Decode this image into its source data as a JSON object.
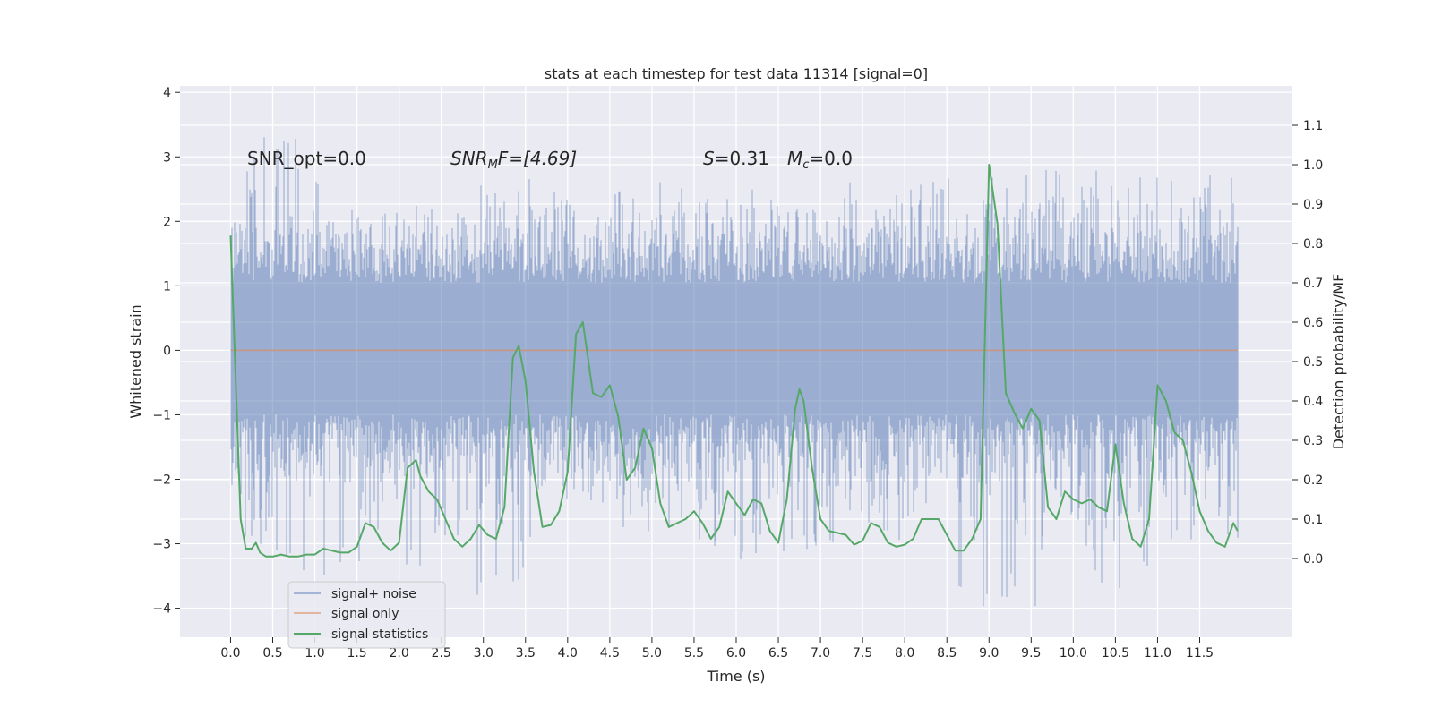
{
  "chart_data": {
    "type": "line",
    "title": "stats at each timestep for test data 11314 [signal=0]",
    "xlabel": "Time (s)",
    "ylabel": "Whitened strain",
    "ylabel_right": "Detection probability/MF",
    "xlim": [
      -0.6,
      12.6
    ],
    "ylim": [
      -4.45,
      4.1
    ],
    "ylim_right": [
      -0.2,
      1.2
    ],
    "x_ticks": [
      0.0,
      0.5,
      1.0,
      1.5,
      2.0,
      2.5,
      3.0,
      3.5,
      4.0,
      4.5,
      5.0,
      5.5,
      6.0,
      6.5,
      7.0,
      7.5,
      8.0,
      8.5,
      9.0,
      9.5,
      10.0,
      10.5,
      11.0,
      11.5
    ],
    "x_tick_labels": [
      "0.0",
      "0.5",
      "1.0",
      "1.5",
      "2.0",
      "2.5",
      "3.0",
      "3.5",
      "4.0",
      "4.5",
      "5.0",
      "5.5",
      "6.0",
      "6.5",
      "7.0",
      "7.5",
      "8.0",
      "8.5",
      "9.0",
      "9.5",
      "10.0",
      "10.5",
      "11.0",
      "11.5"
    ],
    "y_ticks": [
      -4,
      -3,
      -2,
      -1,
      0,
      1,
      2,
      3,
      4
    ],
    "y_tick_labels": [
      "−4",
      "−3",
      "−2",
      "−1",
      "0",
      "1",
      "2",
      "3",
      "4"
    ],
    "y_right_ticks": [
      0.0,
      0.1,
      0.2,
      0.3,
      0.4,
      0.5,
      0.6,
      0.7,
      0.8,
      0.9,
      1.0,
      1.1
    ],
    "y_right_tick_labels": [
      "0.0",
      "0.1",
      "0.2",
      "0.3",
      "0.4",
      "0.5",
      "0.6",
      "0.7",
      "0.8",
      "0.9",
      "1.0",
      "1.1"
    ],
    "grid": true,
    "legend_position": "lower-left",
    "annotations": {
      "snr_opt": "SNR_opt=0.0",
      "snr_mf_main": "SNR",
      "snr_mf_sub": "M",
      "snr_mf_rest": "F=[4.69]",
      "s_symbol": "S",
      "s_value": "=0.31",
      "mc_symbol": "M",
      "mc_sub": "c",
      "mc_value": "=0.0"
    },
    "series": [
      {
        "name": "signal+ noise",
        "axis": "left",
        "color": "#4c72b0",
        "duration": 11.95,
        "envelope_x": [
          0.0,
          0.7,
          1.3,
          2.0,
          3.0,
          4.0,
          5.0,
          6.0,
          7.0,
          8.0,
          9.0,
          10.0,
          11.0,
          11.95
        ],
        "envelope_hi": [
          2.9,
          3.74,
          2.5,
          2.4,
          2.6,
          2.7,
          2.7,
          2.3,
          2.6,
          2.7,
          3.7,
          2.8,
          2.8,
          2.7
        ],
        "envelope_lo": [
          -3.0,
          -3.4,
          -3.7,
          -3.3,
          -3.95,
          -3.1,
          -2.9,
          -3.3,
          -3.1,
          -3.0,
          -4.1,
          -3.9,
          -3.55,
          -3.25
        ]
      },
      {
        "name": "signal only",
        "axis": "left",
        "color": "#dd8452",
        "x": [
          0.0,
          11.95
        ],
        "y": [
          0.0,
          0.0
        ]
      },
      {
        "name": "signal statistics",
        "axis": "right",
        "color": "#55a868",
        "x": [
          0.0,
          0.12,
          0.18,
          0.25,
          0.3,
          0.35,
          0.42,
          0.5,
          0.6,
          0.7,
          0.8,
          0.9,
          1.0,
          1.1,
          1.2,
          1.3,
          1.4,
          1.5,
          1.6,
          1.7,
          1.75,
          1.8,
          1.9,
          2.0,
          2.1,
          2.2,
          2.25,
          2.35,
          2.45,
          2.55,
          2.65,
          2.75,
          2.85,
          2.95,
          3.05,
          3.15,
          3.25,
          3.35,
          3.42,
          3.5,
          3.6,
          3.7,
          3.8,
          3.9,
          4.0,
          4.1,
          4.18,
          4.3,
          4.4,
          4.5,
          4.6,
          4.7,
          4.8,
          4.9,
          5.0,
          5.1,
          5.2,
          5.3,
          5.4,
          5.5,
          5.6,
          5.7,
          5.8,
          5.9,
          6.0,
          6.1,
          6.2,
          6.3,
          6.4,
          6.5,
          6.6,
          6.7,
          6.75,
          6.8,
          6.9,
          7.0,
          7.1,
          7.2,
          7.3,
          7.4,
          7.5,
          7.6,
          7.7,
          7.8,
          7.9,
          8.0,
          8.1,
          8.2,
          8.3,
          8.4,
          8.5,
          8.6,
          8.7,
          8.8,
          8.9,
          9.0,
          9.1,
          9.2,
          9.3,
          9.4,
          9.5,
          9.6,
          9.7,
          9.8,
          9.9,
          10.0,
          10.1,
          10.2,
          10.3,
          10.4,
          10.5,
          10.6,
          10.7,
          10.8,
          10.9,
          11.0,
          11.1,
          11.2,
          11.3,
          11.4,
          11.5,
          11.6,
          11.7,
          11.8,
          11.9,
          11.95
        ],
        "y": [
          0.82,
          0.1,
          0.025,
          0.025,
          0.04,
          0.015,
          0.005,
          0.005,
          0.01,
          0.005,
          0.005,
          0.01,
          0.01,
          0.025,
          0.02,
          0.015,
          0.015,
          0.03,
          0.09,
          0.08,
          0.06,
          0.04,
          0.02,
          0.04,
          0.23,
          0.25,
          0.21,
          0.17,
          0.15,
          0.1,
          0.05,
          0.03,
          0.05,
          0.085,
          0.06,
          0.05,
          0.13,
          0.51,
          0.54,
          0.45,
          0.22,
          0.08,
          0.085,
          0.12,
          0.22,
          0.57,
          0.6,
          0.42,
          0.41,
          0.44,
          0.36,
          0.2,
          0.23,
          0.33,
          0.28,
          0.14,
          0.08,
          0.09,
          0.1,
          0.12,
          0.09,
          0.05,
          0.08,
          0.17,
          0.14,
          0.11,
          0.15,
          0.14,
          0.07,
          0.04,
          0.15,
          0.38,
          0.43,
          0.4,
          0.23,
          0.1,
          0.07,
          0.065,
          0.06,
          0.035,
          0.045,
          0.09,
          0.08,
          0.04,
          0.03,
          0.035,
          0.05,
          0.1,
          0.1,
          0.1,
          0.06,
          0.02,
          0.02,
          0.05,
          0.1,
          1.0,
          0.85,
          0.42,
          0.37,
          0.33,
          0.38,
          0.35,
          0.13,
          0.1,
          0.17,
          0.15,
          0.14,
          0.15,
          0.13,
          0.12,
          0.29,
          0.14,
          0.05,
          0.03,
          0.1,
          0.44,
          0.4,
          0.32,
          0.3,
          0.22,
          0.12,
          0.07,
          0.04,
          0.03,
          0.09,
          0.07
        ]
      }
    ]
  }
}
